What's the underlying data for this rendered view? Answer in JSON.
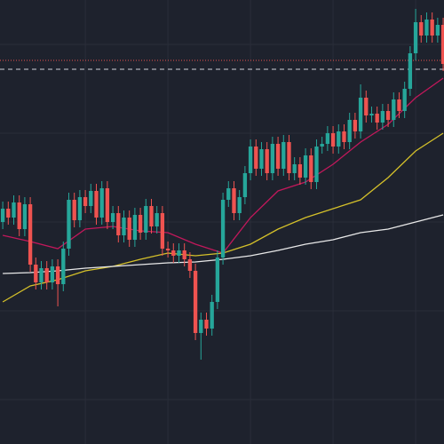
{
  "chart_data": {
    "type": "candlestick",
    "xlim": [
      -0.5,
      80.15
    ],
    "ylim": [
      0,
      500
    ],
    "xticks": [
      15,
      30,
      45,
      60,
      75
    ],
    "yticks": [
      50,
      150,
      250,
      350,
      450
    ],
    "grid": true,
    "up_color": "#26a69a",
    "down_color": "#ef5350",
    "background": "#1e222d",
    "grid_color": "#2a2e39",
    "open": [
      250,
      265,
      255,
      272,
      242,
      270,
      202,
      182,
      198,
      182,
      200,
      180,
      220,
      275,
      252,
      278,
      268,
      285,
      255,
      288,
      250,
      260,
      235,
      255,
      230,
      258,
      238,
      268,
      245,
      260,
      220,
      218,
      212,
      218,
      208,
      195,
      125,
      140,
      130,
      160,
      210,
      275,
      288,
      260,
      278,
      305,
      335,
      310,
      332,
      305,
      338,
      310,
      340,
      305,
      315,
      300,
      325,
      295,
      335,
      338,
      350,
      335,
      352,
      340,
      365,
      352,
      390,
      370,
      372,
      362,
      375,
      365,
      388,
      375,
      400,
      440,
      475,
      460,
      478,
      460,
      472
    ],
    "high": [
      273,
      273,
      280,
      280,
      278,
      278,
      210,
      206,
      206,
      208,
      208,
      228,
      283,
      283,
      286,
      286,
      293,
      293,
      296,
      296,
      268,
      268,
      263,
      263,
      266,
      266,
      276,
      276,
      268,
      268,
      228,
      226,
      226,
      226,
      216,
      203,
      148,
      148,
      168,
      218,
      283,
      296,
      296,
      286,
      313,
      343,
      343,
      340,
      340,
      346,
      346,
      348,
      348,
      323,
      323,
      333,
      333,
      343,
      346,
      358,
      358,
      360,
      360,
      373,
      373,
      405,
      398,
      380,
      380,
      383,
      383,
      396,
      396,
      408,
      448,
      490,
      483,
      486,
      486,
      480,
      480
    ],
    "low": [
      242,
      247,
      247,
      234,
      234,
      194,
      174,
      174,
      174,
      174,
      155,
      172,
      212,
      244,
      244,
      260,
      260,
      247,
      247,
      242,
      242,
      227,
      227,
      222,
      222,
      230,
      230,
      237,
      237,
      212,
      210,
      204,
      204,
      200,
      187,
      117,
      95,
      122,
      122,
      152,
      202,
      267,
      252,
      252,
      270,
      297,
      302,
      302,
      297,
      297,
      302,
      302,
      297,
      297,
      292,
      292,
      287,
      287,
      327,
      330,
      327,
      327,
      332,
      332,
      344,
      344,
      362,
      362,
      354,
      354,
      357,
      357,
      367,
      367,
      392,
      432,
      452,
      452,
      452,
      452,
      420
    ],
    "close": [
      265,
      255,
      272,
      242,
      270,
      202,
      182,
      198,
      182,
      200,
      180,
      220,
      275,
      252,
      278,
      268,
      285,
      255,
      288,
      250,
      260,
      235,
      255,
      230,
      258,
      238,
      268,
      245,
      260,
      220,
      218,
      212,
      218,
      208,
      195,
      125,
      140,
      130,
      160,
      210,
      275,
      288,
      260,
      278,
      305,
      335,
      310,
      332,
      305,
      338,
      310,
      340,
      305,
      315,
      300,
      325,
      295,
      335,
      338,
      350,
      335,
      352,
      340,
      365,
      352,
      390,
      370,
      372,
      362,
      375,
      365,
      388,
      375,
      400,
      440,
      475,
      460,
      478,
      460,
      472,
      428
    ],
    "series": [
      {
        "color": "#c2185b",
        "x": [
          0,
          5,
          10,
          15,
          20,
          25,
          30,
          35,
          40,
          45,
          50,
          55,
          60,
          65,
          70,
          75,
          80
        ],
        "values": [
          235,
          228,
          220,
          242,
          245,
          240,
          238,
          225,
          215,
          255,
          285,
          295,
          315,
          340,
          360,
          390,
          412
        ]
      },
      {
        "color": "#d4c02a",
        "x": [
          0,
          5,
          10,
          15,
          20,
          25,
          30,
          35,
          40,
          45,
          50,
          55,
          60,
          65,
          70,
          75,
          80
        ],
        "values": [
          160,
          178,
          185,
          195,
          200,
          208,
          215,
          212,
          215,
          225,
          242,
          255,
          265,
          275,
          300,
          330,
          350
        ]
      },
      {
        "color": "#e8e8e8",
        "x": [
          0,
          5,
          10,
          15,
          20,
          25,
          30,
          35,
          40,
          45,
          50,
          55,
          60,
          65,
          70,
          75,
          80
        ],
        "values": [
          192,
          193,
          195,
          198,
          200,
          202,
          204,
          205,
          208,
          212,
          218,
          225,
          230,
          238,
          242,
          250,
          258
        ]
      }
    ],
    "levels": [
      {
        "value": 432,
        "color": "#ef5350",
        "dash": "1 2"
      },
      {
        "value": 422,
        "color": "#d1d4dc",
        "dash": "5 4"
      }
    ]
  }
}
